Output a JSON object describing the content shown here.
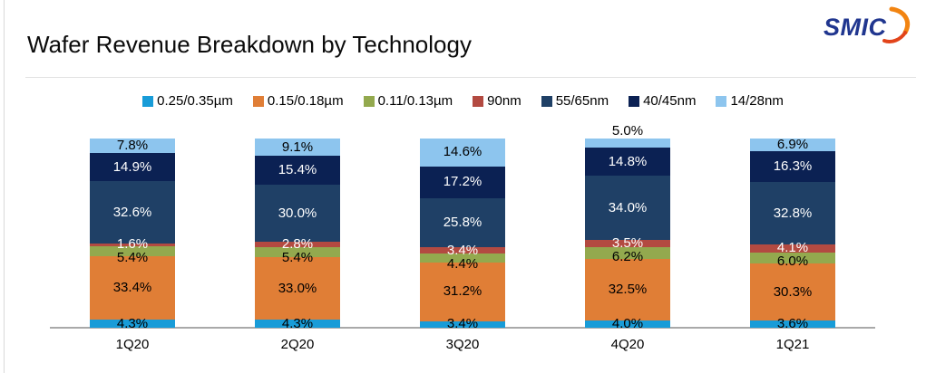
{
  "logo": {
    "text": "SMIC",
    "text_color": "#20368f",
    "swoosh_orange": "#f28411",
    "swoosh_red": "#e2441a"
  },
  "header": {
    "title": "Wafer Revenue Breakdown by Technology"
  },
  "chart_data": {
    "type": "bar",
    "stacked": true,
    "title": "Wafer Revenue Breakdown by Technology",
    "unit": "%",
    "value_format": "one_decimal_percent",
    "ylim": [
      0,
      100
    ],
    "grid": false,
    "legend_position": "top",
    "categories": [
      "1Q20",
      "2Q20",
      "3Q20",
      "4Q20",
      "1Q21"
    ],
    "series": [
      {
        "name": "0.25/0.35µm",
        "color": "#189cd8",
        "label_color": "#000000",
        "values": [
          4.3,
          4.3,
          3.4,
          4.0,
          3.6
        ]
      },
      {
        "name": "0.15/0.18µm",
        "color": "#e07e36",
        "label_color": "#000000",
        "values": [
          33.4,
          33.0,
          31.2,
          32.5,
          30.3
        ]
      },
      {
        "name": "0.11/0.13µm",
        "color": "#93a94e",
        "label_color": "#000000",
        "values": [
          5.4,
          5.4,
          4.4,
          6.2,
          6.0
        ]
      },
      {
        "name": "90nm",
        "color": "#b34a41",
        "label_color": "#ffffff",
        "values": [
          1.6,
          2.8,
          3.4,
          3.5,
          4.1
        ]
      },
      {
        "name": "55/65nm",
        "color": "#1f4066",
        "label_color": "#ffffff",
        "values": [
          32.6,
          30.0,
          25.8,
          34.0,
          32.8
        ]
      },
      {
        "name": "40/45nm",
        "color": "#0b2153",
        "label_color": "#ffffff",
        "values": [
          14.9,
          15.4,
          17.2,
          14.8,
          16.3
        ]
      },
      {
        "name": "14/28nm",
        "color": "#8dc5ee",
        "label_color": "#000000",
        "values": [
          7.8,
          9.1,
          14.6,
          5.0,
          6.9
        ]
      }
    ]
  }
}
